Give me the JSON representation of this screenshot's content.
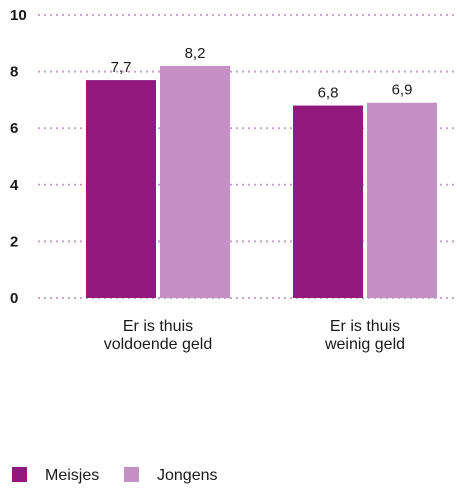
{
  "chart_data": {
    "type": "bar",
    "categories": [
      [
        "Er is thuis",
        "voldoende geld"
      ],
      [
        "Er is thuis",
        "weinig geld"
      ]
    ],
    "series": [
      {
        "name": "Meisjes",
        "color": "#94197f",
        "values": [
          7.7,
          6.8
        ],
        "labels": [
          "7,7",
          "6,8"
        ]
      },
      {
        "name": "Jongens",
        "color": "#c590c3",
        "values": [
          8.2,
          6.9
        ],
        "labels": [
          "8,2",
          "6,9"
        ]
      }
    ],
    "yticks": [
      0,
      2,
      4,
      6,
      8,
      10
    ],
    "ylim": [
      0,
      10
    ],
    "grid": true,
    "gridline_color": "#c9a3cf",
    "legend_position": "bottom-left",
    "title": "",
    "xlabel": "",
    "ylabel": ""
  }
}
